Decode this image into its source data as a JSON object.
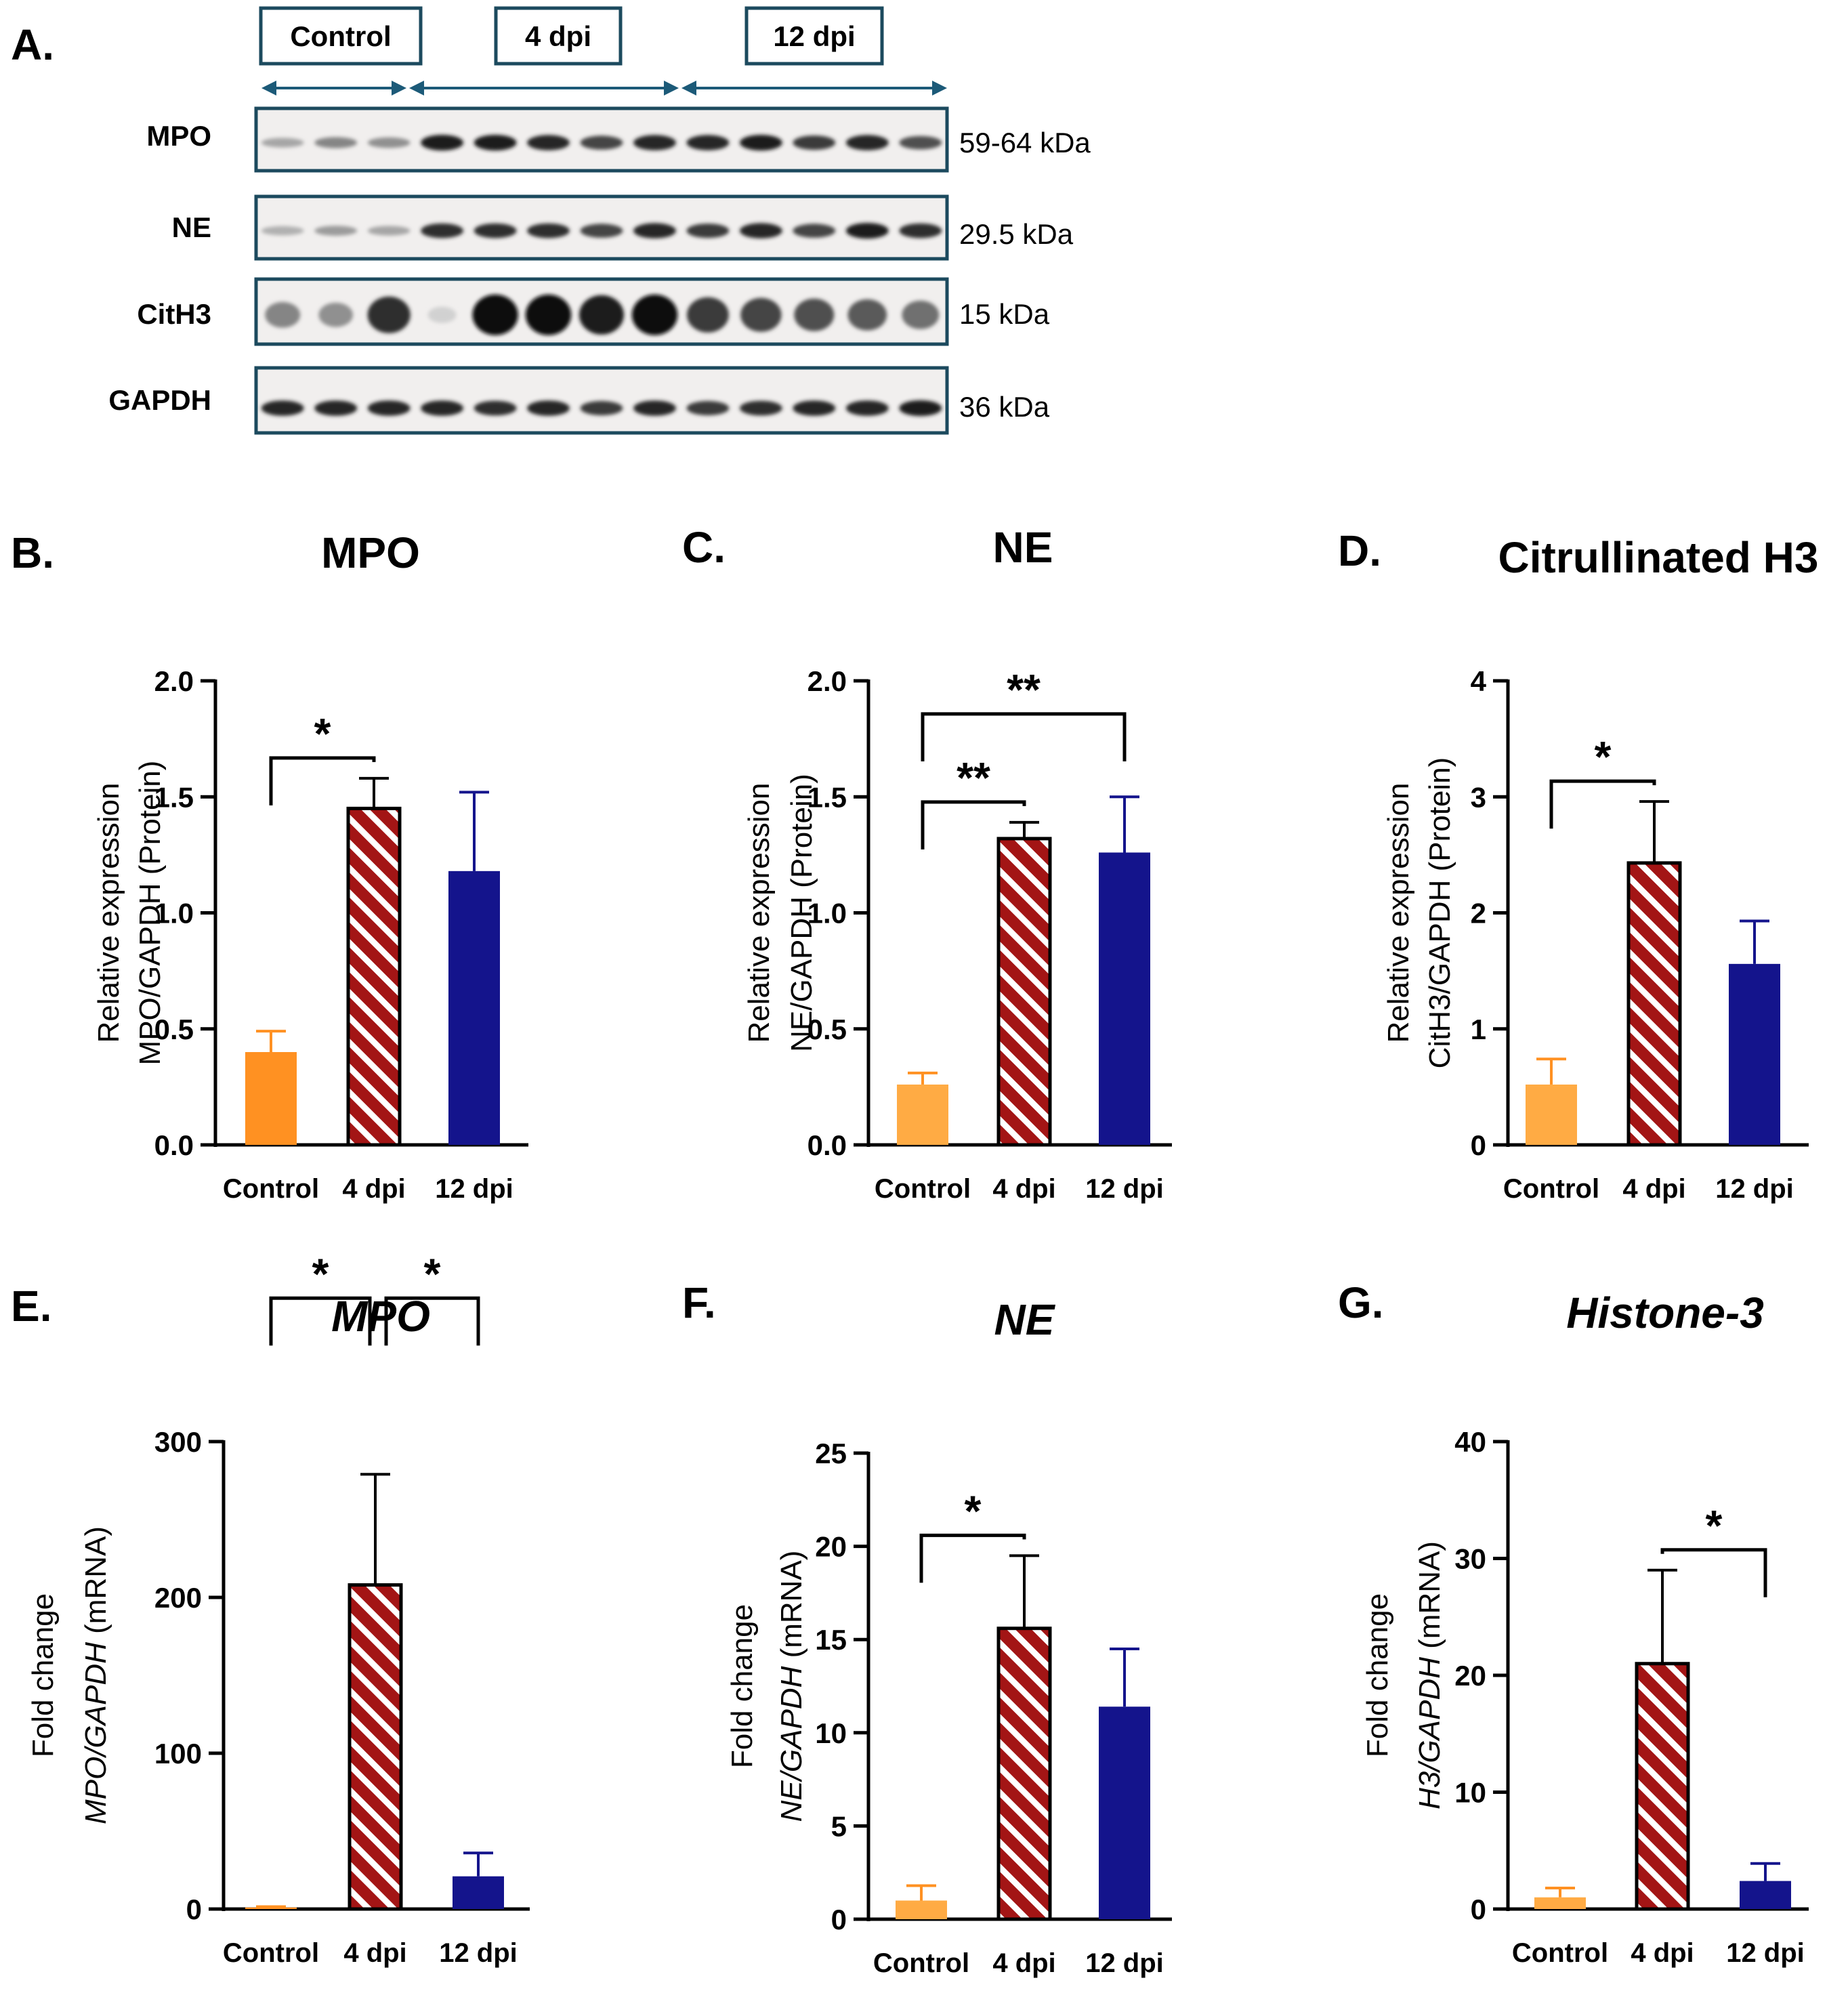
{
  "figure": {
    "colors": {
      "control": "#ff9122",
      "control_light": "#ffab44",
      "dpi4_stripe": "#a31515",
      "dpi12": "#14148c",
      "blot_frame": "#1c4a5e",
      "group_arrow": "#1c5a78",
      "text": "#000000"
    }
  },
  "western_blot": {
    "panel_letter": "A.",
    "groups": [
      {
        "label": "Control",
        "lanes": 3
      },
      {
        "label": "4 dpi",
        "lanes": 5
      },
      {
        "label": "12 dpi",
        "lanes": 5
      }
    ],
    "rows": [
      {
        "protein": "MPO",
        "size": "59-64 kDa",
        "lane_intensity": [
          0.3,
          0.45,
          0.4,
          0.95,
          0.95,
          0.9,
          0.75,
          0.9,
          0.9,
          0.95,
          0.8,
          0.9,
          0.7
        ]
      },
      {
        "protein": "NE",
        "size": "29.5 kDa",
        "lane_intensity": [
          0.25,
          0.35,
          0.3,
          0.85,
          0.85,
          0.85,
          0.75,
          0.9,
          0.8,
          0.9,
          0.75,
          0.95,
          0.85
        ]
      },
      {
        "protein": "CitH3",
        "size": "15  kDa",
        "lane_intensity": [
          0.45,
          0.4,
          0.85,
          0.1,
          1.0,
          1.0,
          0.95,
          1.0,
          0.8,
          0.75,
          0.7,
          0.65,
          0.55
        ]
      },
      {
        "protein": "GAPDH",
        "size": "36 kDa",
        "lane_intensity": [
          0.9,
          0.9,
          0.9,
          0.9,
          0.85,
          0.9,
          0.8,
          0.9,
          0.8,
          0.85,
          0.9,
          0.9,
          0.95
        ]
      }
    ]
  },
  "chart_data": [
    {
      "panel": "B.",
      "type": "bar",
      "title": "MPO",
      "title_italic": false,
      "ylabel_lines": [
        [
          {
            "t": "Relative expression"
          }
        ],
        [
          {
            "t": "MPO/GAPDH (Protein)"
          }
        ]
      ],
      "categories": [
        "Control",
        "4 dpi",
        "12 dpi"
      ],
      "values": [
        0.4,
        1.45,
        1.18
      ],
      "errors": [
        0.09,
        0.13,
        0.34
      ],
      "ylim": [
        0,
        2.0
      ],
      "yticks": [
        "0.0",
        "0.5",
        "1.0",
        "1.5",
        "2.0"
      ],
      "ytick_values": [
        0,
        0.5,
        1.0,
        1.5,
        2.0
      ],
      "significance": [
        {
          "from": 0,
          "to": 1,
          "label": "*"
        }
      ]
    },
    {
      "panel": "C.",
      "type": "bar",
      "title": "NE",
      "title_italic": false,
      "ylabel_lines": [
        [
          {
            "t": "Relative expression"
          }
        ],
        [
          {
            "t": "NE/GAPDH (Protein)"
          }
        ]
      ],
      "categories": [
        "Control",
        "4 dpi",
        "12 dpi"
      ],
      "values": [
        0.26,
        1.32,
        1.26
      ],
      "errors": [
        0.05,
        0.07,
        0.24
      ],
      "ylim": [
        0,
        2.0
      ],
      "yticks": [
        "0.0",
        "0.5",
        "1.0",
        "1.5",
        "2.0"
      ],
      "ytick_values": [
        0,
        0.5,
        1.0,
        1.5,
        2.0
      ],
      "significance": [
        {
          "from": 0,
          "to": 1,
          "label": "**"
        },
        {
          "from": 0,
          "to": 2,
          "label": "**"
        }
      ]
    },
    {
      "panel": "D.",
      "type": "bar",
      "title": "Citrullinated H3",
      "title_italic": false,
      "ylabel_lines": [
        [
          {
            "t": "Relative expression"
          }
        ],
        [
          {
            "t": "CitH3/GAPDH (Protein)"
          }
        ]
      ],
      "categories": [
        "Control",
        "4 dpi",
        "12 dpi"
      ],
      "values": [
        0.52,
        2.43,
        1.56
      ],
      "errors": [
        0.22,
        0.53,
        0.37
      ],
      "ylim": [
        0,
        4
      ],
      "yticks": [
        "0",
        "1",
        "2",
        "3",
        "4"
      ],
      "ytick_values": [
        0,
        1,
        2,
        3,
        4
      ],
      "significance": [
        {
          "from": 0,
          "to": 1,
          "label": "*"
        }
      ]
    },
    {
      "panel": "E.",
      "type": "bar",
      "title": "MPO",
      "title_italic": true,
      "ylabel_lines": [
        [
          {
            "t": "Fold change"
          }
        ],
        [
          {
            "t": "MPO/GAPDH",
            "i": true
          },
          {
            "t": " (mRNA)"
          }
        ]
      ],
      "categories": [
        "Control",
        "4 dpi",
        "12 dpi"
      ],
      "values": [
        1.0,
        208,
        21
      ],
      "errors": [
        0.5,
        71,
        15
      ],
      "ylim": [
        0,
        300
      ],
      "yticks": [
        "0",
        "100",
        "200",
        "300"
      ],
      "ytick_values": [
        0,
        100,
        200,
        300
      ],
      "significance": [
        {
          "from": 0,
          "to": 1,
          "label": "*"
        },
        {
          "from": 1,
          "to": 2,
          "label": "*"
        }
      ]
    },
    {
      "panel": "F.",
      "type": "bar",
      "title": "NE",
      "title_italic": true,
      "ylabel_lines": [
        [
          {
            "t": "Fold change"
          }
        ],
        [
          {
            "t": "NE/GAPDH",
            "i": true
          },
          {
            "t": " (mRNA)"
          }
        ]
      ],
      "categories": [
        "Control",
        "4 dpi",
        "12 dpi"
      ],
      "values": [
        1.0,
        15.6,
        11.4
      ],
      "errors": [
        0.8,
        3.9,
        3.1
      ],
      "ylim": [
        0,
        25
      ],
      "yticks": [
        "0",
        "5",
        "10",
        "15",
        "20",
        "25"
      ],
      "ytick_values": [
        0,
        5,
        10,
        15,
        20,
        25
      ],
      "significance": [
        {
          "from": 0,
          "to": 1,
          "label": "*"
        }
      ]
    },
    {
      "panel": "G.",
      "type": "bar",
      "title": "Histone-3",
      "title_italic": true,
      "ylabel_lines": [
        [
          {
            "t": "Fold change"
          }
        ],
        [
          {
            "t": "H3/GAPDH",
            "i": true
          },
          {
            "t": " (mRNA)"
          }
        ]
      ],
      "categories": [
        "Control",
        "4 dpi",
        "12 dpi"
      ],
      "values": [
        1.0,
        21,
        2.4
      ],
      "errors": [
        0.8,
        8,
        1.5
      ],
      "ylim": [
        0,
        40
      ],
      "yticks": [
        "0",
        "10",
        "20",
        "30",
        "40"
      ],
      "ytick_values": [
        0,
        10,
        20,
        30,
        40
      ],
      "significance": [
        {
          "from": 1,
          "to": 2,
          "label": "*"
        }
      ]
    }
  ]
}
